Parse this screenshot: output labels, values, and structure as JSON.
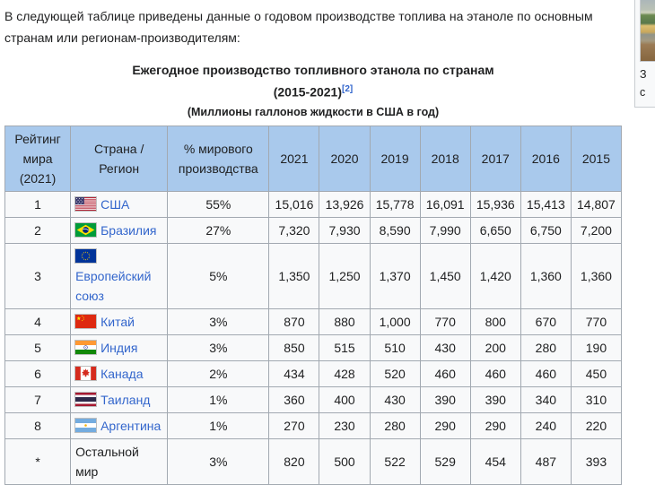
{
  "intro": "В следующей таблице приведены данные о годовом производстве топлива на этаноле по основным странам или регионам-производителям:",
  "table": {
    "title": "Ежегодное производство топливного этанола по странам",
    "title_years": "(2015-2021)",
    "reference_label": "[2]",
    "units": "(Миллионы галлонов жидкости в США в год)",
    "columns": [
      "Рейтинг мира (2021)",
      "Страна / Регион",
      "% мирового производства",
      "2021",
      "2020",
      "2019",
      "2018",
      "2017",
      "2016",
      "2015"
    ],
    "rows": [
      {
        "rank": "1",
        "country": "США",
        "flag_icon": "us-flag-icon",
        "share": "55%",
        "values": [
          "15,016",
          "13,926",
          "15,778",
          "16,091",
          "15,936",
          "15,413",
          "14,807"
        ]
      },
      {
        "rank": "2",
        "country": "Бразилия",
        "flag_icon": "br-flag-icon",
        "share": "27%",
        "values": [
          "7,320",
          "7,930",
          "8,590",
          "7,990",
          "6,650",
          "6,750",
          "7,200"
        ]
      },
      {
        "rank": "3",
        "country": "Европейский союз",
        "flag_icon": "eu-flag-icon",
        "share": "5%",
        "values": [
          "1,350",
          "1,250",
          "1,370",
          "1,450",
          "1,420",
          "1,360",
          "1,360"
        ]
      },
      {
        "rank": "4",
        "country": "Китай",
        "flag_icon": "cn-flag-icon",
        "share": "3%",
        "values": [
          "870",
          "880",
          "1,000",
          "770",
          "800",
          "670",
          "770"
        ]
      },
      {
        "rank": "5",
        "country": "Индия",
        "flag_icon": "in-flag-icon",
        "share": "3%",
        "values": [
          "850",
          "515",
          "510",
          "430",
          "200",
          "280",
          "190"
        ]
      },
      {
        "rank": "6",
        "country": "Канада",
        "flag_icon": "ca-flag-icon",
        "share": "2%",
        "values": [
          "434",
          "428",
          "520",
          "460",
          "460",
          "460",
          "450"
        ]
      },
      {
        "rank": "7",
        "country": "Таиланд",
        "flag_icon": "th-flag-icon",
        "share": "1%",
        "values": [
          "360",
          "400",
          "430",
          "390",
          "390",
          "340",
          "310"
        ]
      },
      {
        "rank": "8",
        "country": "Аргентина",
        "flag_icon": "ar-flag-icon",
        "share": "1%",
        "values": [
          "270",
          "230",
          "280",
          "290",
          "290",
          "240",
          "220"
        ]
      },
      {
        "rank": "*",
        "country": "Остальной мир",
        "flag_icon": null,
        "share": "3%",
        "values": [
          "820",
          "500",
          "522",
          "529",
          "454",
          "487",
          "393"
        ]
      }
    ]
  },
  "thumbnail": {
    "caption_line1": "З",
    "caption_line2": "с"
  },
  "colors": {
    "header_bg": "#a9c9ec",
    "cell_bg": "#f8f9fa",
    "border": "#a2a9b1",
    "link": "#3366cc",
    "text": "#202122"
  }
}
